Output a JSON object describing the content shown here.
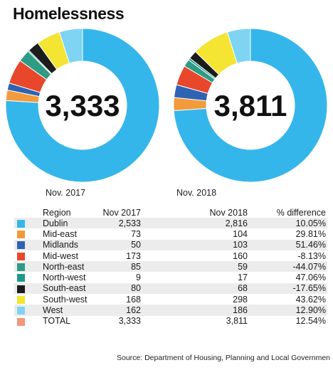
{
  "title": "Homelessness",
  "chart_data": {
    "type": "donut",
    "charts": [
      {
        "caption": "Nov. 2017",
        "center_label": "3,333",
        "total": 3333
      },
      {
        "caption": "Nov. 2018",
        "center_label": "3,811",
        "total": 3811
      }
    ],
    "colors": {
      "Dublin": "#35b6ea",
      "Mid-east": "#f29a3c",
      "Midlands": "#2e63b4",
      "Mid-west": "#e8472b",
      "North-east": "#2e9c84",
      "North-west": "#1d9a8c",
      "South-east": "#1c1c1c",
      "South-west": "#f3e531",
      "West": "#7fd3f3",
      "TOTAL": "#f0977a"
    }
  },
  "table": {
    "headers": {
      "region": "Region",
      "nov2017": "Nov 2017",
      "nov2018": "Nov 2018",
      "pct": "% difference"
    },
    "rows": [
      {
        "region": "Dublin",
        "nov2017": "2,533",
        "nov2018": "2,816",
        "pct": "10.05%"
      },
      {
        "region": "Mid-east",
        "nov2017": "73",
        "nov2018": "104",
        "pct": "29.81%"
      },
      {
        "region": "Midlands",
        "nov2017": "50",
        "nov2018": "103",
        "pct": "51.46%"
      },
      {
        "region": "Mid-west",
        "nov2017": "173",
        "nov2018": "160",
        "pct": "-8.13%"
      },
      {
        "region": "North-east",
        "nov2017": "85",
        "nov2018": "59",
        "pct": "-44.07%"
      },
      {
        "region": "North-west",
        "nov2017": "9",
        "nov2018": "17",
        "pct": "47.06%"
      },
      {
        "region": "South-east",
        "nov2017": "80",
        "nov2018": "68",
        "pct": "-17.65%"
      },
      {
        "region": "South-west",
        "nov2017": "168",
        "nov2018": "298",
        "pct": "43.62%"
      },
      {
        "region": "West",
        "nov2017": "162",
        "nov2018": "186",
        "pct": "12.90%"
      },
      {
        "region": "TOTAL",
        "nov2017": "3,333",
        "nov2018": "3,811",
        "pct": "12.54%"
      }
    ]
  },
  "source": "Source: Department of Housing, Planning and Local Governmen"
}
